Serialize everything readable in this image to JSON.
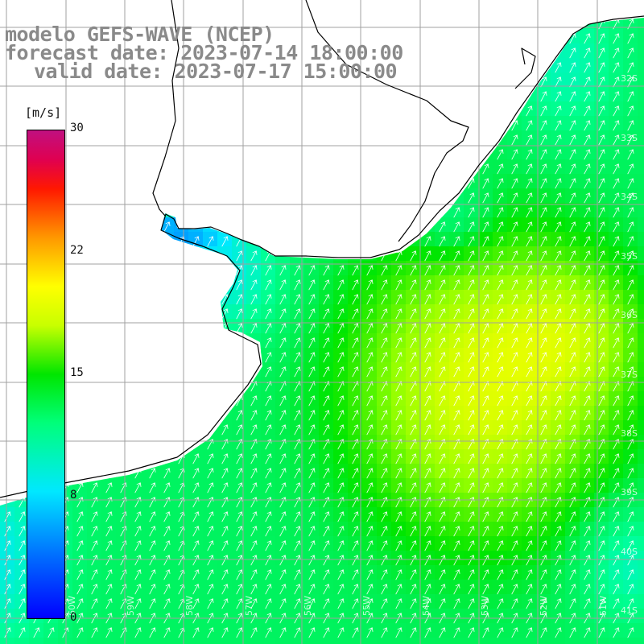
{
  "title": {
    "line1": "modelo GEFS-WAVE (NCEP)",
    "line2": "forecast date: 2023-07-14 18:00:00",
    "line3": "valid date: 2023-07-17 15:00:00"
  },
  "colorbar": {
    "unit": "[m/s]",
    "ticks": [
      "30",
      "22",
      "15",
      "8",
      "0"
    ],
    "range": [
      0,
      30
    ],
    "colors": [
      "#0000ff",
      "#0070ff",
      "#00e8ff",
      "#00ff7a",
      "#00e600",
      "#c8ff00",
      "#ffff00",
      "#ff9800",
      "#ff1800",
      "#c01080"
    ]
  },
  "map": {
    "lat_labels": [
      "32S",
      "33S",
      "34S",
      "35S",
      "36S",
      "37S",
      "38S",
      "39S",
      "40S",
      "41S"
    ],
    "lon_labels": [
      "60W",
      "59W",
      "58W",
      "57W",
      "56W",
      "55W",
      "54W",
      "53W",
      "52W",
      "51W"
    ],
    "land_color": "#ffffff",
    "grid_color": "#a0a0a0",
    "arrow_color": "#ffffff",
    "wind_direction": "from south-southwest"
  }
}
